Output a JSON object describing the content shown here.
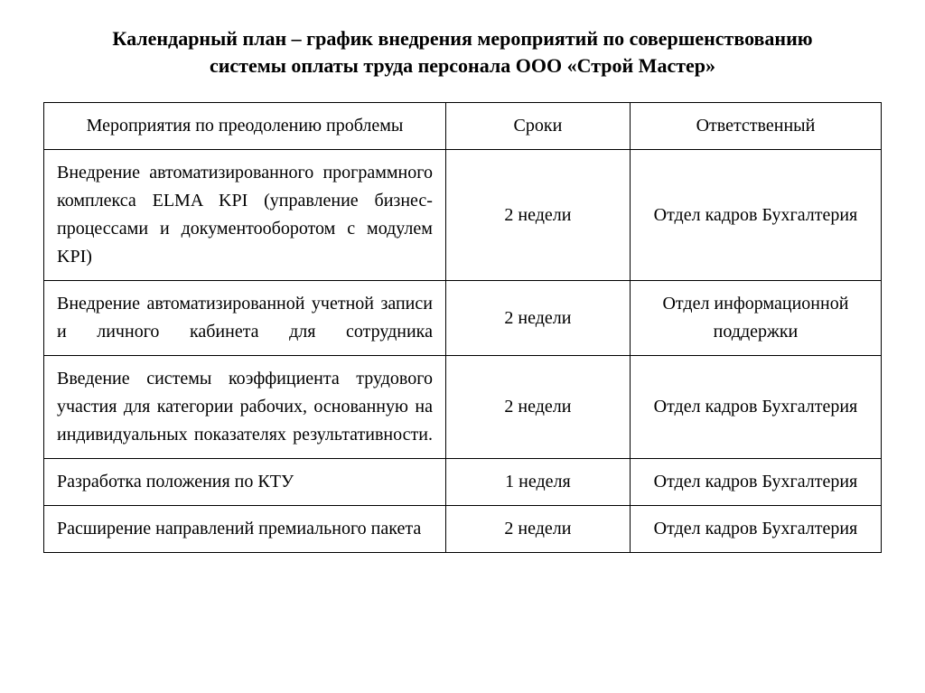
{
  "title_line1": "Календарный план – график внедрения мероприятий по совершенствованию",
  "title_line2": "системы оплаты труда персонала ООО «Строй Мастер»",
  "table": {
    "type": "table",
    "columns": [
      {
        "label": "Мероприятия по преодолению проблемы",
        "width_pct": 48,
        "align": "justify"
      },
      {
        "label": "Сроки",
        "width_pct": 22,
        "align": "center"
      },
      {
        "label": "Ответственный",
        "width_pct": 30,
        "align": "center"
      }
    ],
    "rows": [
      {
        "activity": "Внедрение автоматизированного программного комплекса ELMA KPI (управление бизнес-процессами и документооборотом с модулем KPI)",
        "deadline": "2 недели",
        "responsible": "Отдел кадров Бухгалтерия"
      },
      {
        "activity": "Внедрение автоматизированной учетной записи и личного кабинета для сотрудника",
        "deadline": "2 недели",
        "responsible": "Отдел информационной поддержки"
      },
      {
        "activity": "Введение системы коэффициента трудового участия для категории рабочих, основанную на индивидуальных показателях результативности.",
        "deadline": "2 недели",
        "responsible": "Отдел кадров Бухгалтерия"
      },
      {
        "activity": "Разработка положения по КТУ",
        "deadline": "1 неделя",
        "responsible": "Отдел кадров Бухгалтерия"
      },
      {
        "activity": "Расширение направлений премиального пакета",
        "deadline": "2 недели",
        "responsible": "Отдел кадров Бухгалтерия"
      }
    ],
    "border_color": "#000000",
    "background_color": "#ffffff",
    "text_color": "#000000",
    "header_fontsize": 20,
    "cell_fontsize": 20,
    "title_fontsize": 22,
    "title_fontweight": "bold",
    "font_family": "Times New Roman"
  }
}
